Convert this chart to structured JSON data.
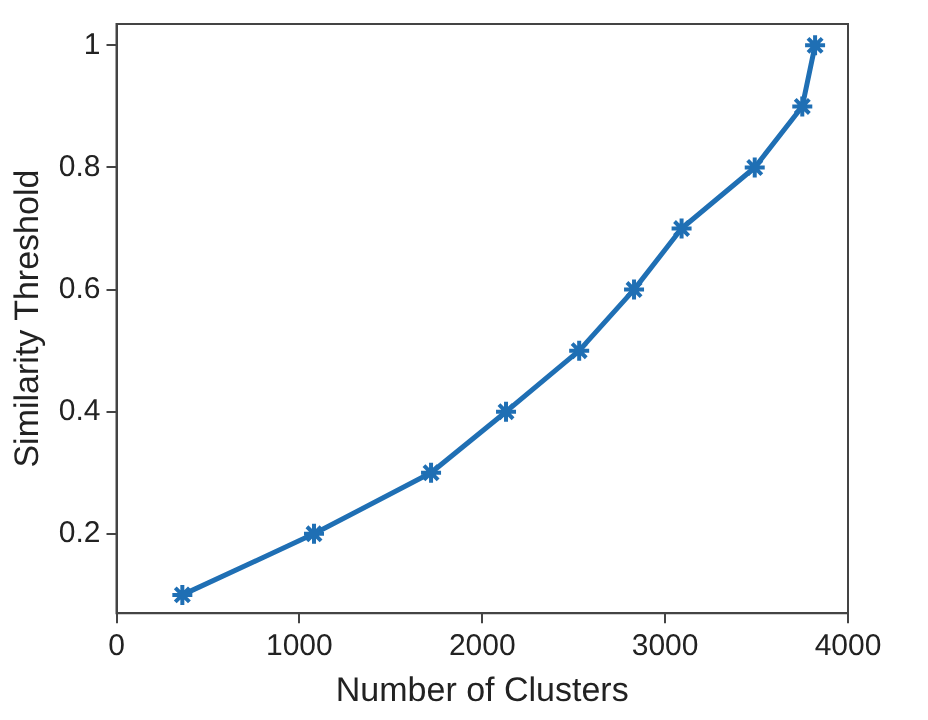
{
  "chart_data": {
    "type": "line",
    "xlabel": "Number of Clusters",
    "ylabel": "Similarity Threshold",
    "x": [
      360,
      1080,
      1720,
      2130,
      2530,
      2830,
      3090,
      3490,
      3750,
      3820
    ],
    "series": [
      {
        "color": "#1f6fb4",
        "values": [
          0.1,
          0.2,
          0.3,
          0.4,
          0.5,
          0.6,
          0.7,
          0.8,
          0.9,
          1.0
        ]
      }
    ],
    "xlim": [
      0,
      4000
    ],
    "xticks": [
      0,
      1000,
      2000,
      3000,
      4000
    ],
    "ylim": [
      0.07,
      1.035
    ],
    "yticks": [
      0.2,
      0.4,
      0.6,
      0.8,
      1
    ],
    "marker": "cross",
    "line_style": "solid",
    "grid": false,
    "legend": false
  }
}
